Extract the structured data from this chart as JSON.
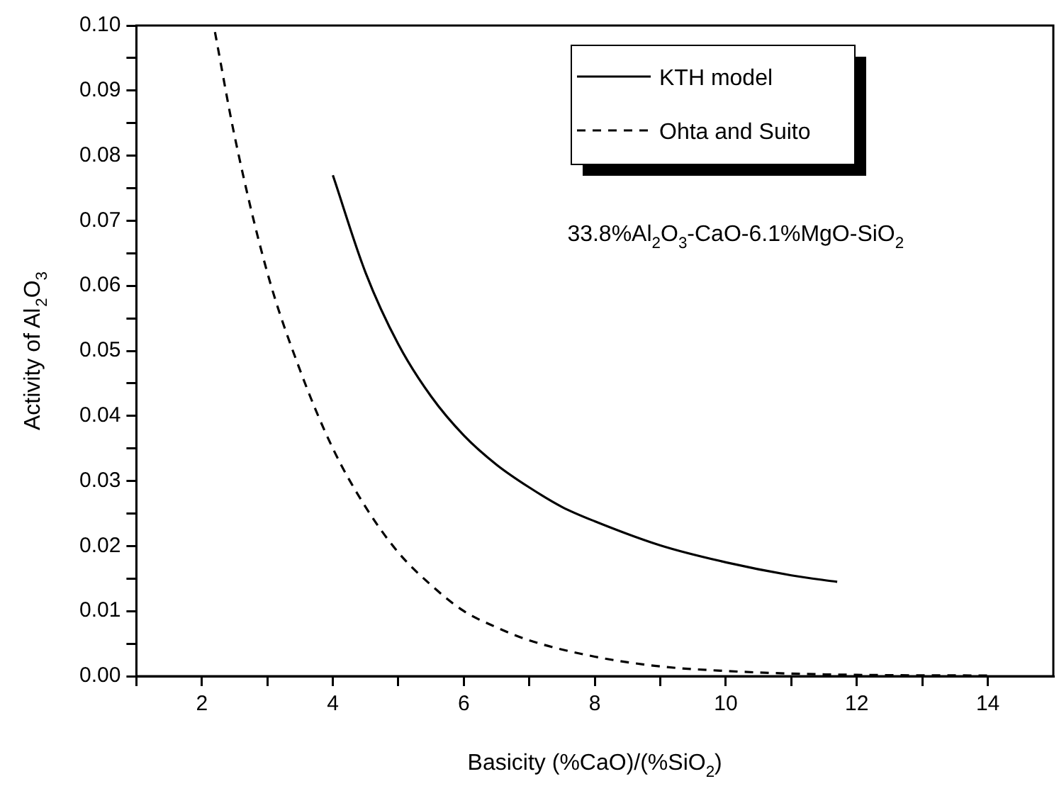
{
  "chart_data": {
    "type": "line",
    "xlabel": "Basicity (%CaO)/(%SiO$_{2}$)",
    "ylabel": "Activity of Al$_{2}$O$_{3}$",
    "annotations": [
      "33.8%Al$_{2}$O$_{3}$-CaO-6.1%MgO-SiO$_{2}$"
    ],
    "xlim": [
      1,
      15
    ],
    "xticks": [
      {
        "value": 1,
        "label": null
      },
      2,
      {
        "value": 3,
        "label": null
      },
      4,
      {
        "value": 5,
        "label": null
      },
      6,
      {
        "value": 7,
        "label": null
      },
      8,
      {
        "value": 9,
        "label": null
      },
      10,
      {
        "value": 11,
        "label": null
      },
      12,
      {
        "value": 13,
        "label": null
      },
      14
    ],
    "ylim": [
      0,
      0.1
    ],
    "yticks": [
      {
        "value": 0,
        "label": "0.00"
      },
      {
        "value": 0.005,
        "label": null
      },
      {
        "value": 0.01,
        "label": "0.01"
      },
      {
        "value": 0.015,
        "label": null
      },
      {
        "value": 0.02,
        "label": "0.02"
      },
      {
        "value": 0.025,
        "label": null
      },
      {
        "value": 0.03,
        "label": "0.03"
      },
      {
        "value": 0.035,
        "label": null
      },
      {
        "value": 0.04,
        "label": "0.04"
      },
      {
        "value": 0.045,
        "label": null
      },
      {
        "value": 0.05,
        "label": "0.05"
      },
      {
        "value": 0.055,
        "label": null
      },
      {
        "value": 0.06,
        "label": "0.06"
      },
      {
        "value": 0.065,
        "label": null
      },
      {
        "value": 0.07,
        "label": "0.07"
      },
      {
        "value": 0.075,
        "label": null
      },
      {
        "value": 0.08,
        "label": "0.08"
      },
      {
        "value": 0.085,
        "label": null
      },
      {
        "value": 0.09,
        "label": "0.09"
      },
      {
        "value": 0.095,
        "label": null
      },
      {
        "value": 0.1,
        "label": "0.10"
      }
    ],
    "grid": false,
    "legend": "top right",
    "marker": "none",
    "series": [
      {
        "name": "KTH model",
        "color": "#000000",
        "line_style": "solid",
        "x": [
          4,
          4.5,
          5,
          5.5,
          6,
          6.5,
          7,
          7.5,
          8,
          9,
          10,
          11,
          11.7
        ],
        "values": [
          0.077,
          0.062,
          0.051,
          0.043,
          0.037,
          0.0325,
          0.029,
          0.026,
          0.0238,
          0.0201,
          0.0175,
          0.0155,
          0.0145
        ]
      },
      {
        "name": "Ohta and Suito",
        "color": "#000000",
        "line_style": "dashed",
        "x": [
          2.2,
          2.5,
          3,
          3.5,
          4,
          4.5,
          5,
          5.5,
          6,
          6.5,
          7,
          8,
          9,
          10,
          11,
          12,
          14
        ],
        "values": [
          0.099,
          0.083,
          0.062,
          0.047,
          0.035,
          0.026,
          0.019,
          0.014,
          0.01,
          0.0075,
          0.0055,
          0.003,
          0.0015,
          0.0008,
          0.0004,
          0.0002,
          0.0001
        ]
      }
    ]
  }
}
